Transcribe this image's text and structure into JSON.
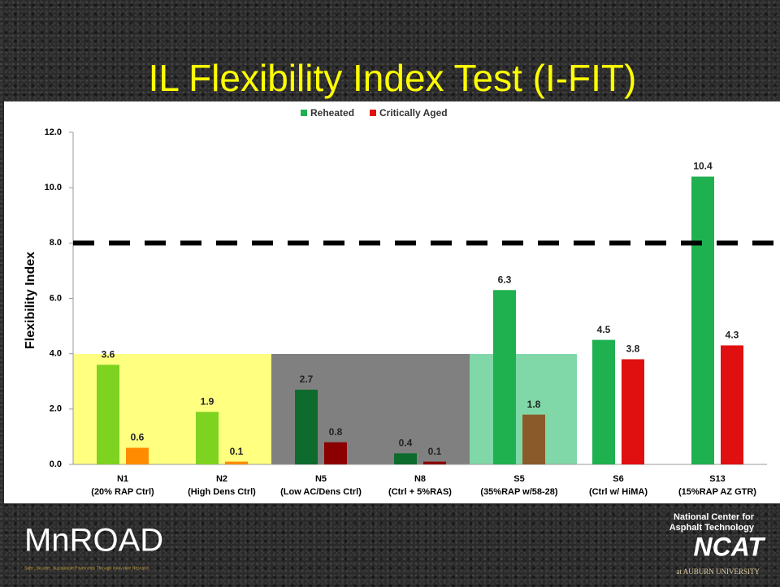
{
  "title": "IL Flexibility Index Test (I-FIT)",
  "logos": {
    "left": "MnROAD",
    "left_tagline": "Safer, Smarter, Sustainable Pavements Through Innovative Research",
    "right": [
      "National Center for",
      "Asphalt Technology",
      "NCAT",
      "at AUBURN UNIVERSITY"
    ]
  },
  "chart_data": {
    "type": "bar",
    "y_label": "Flexibility Index",
    "categories": [
      "N1",
      "N2",
      "N5",
      "N8",
      "S5",
      "S6",
      "S13"
    ],
    "category_descriptions": [
      "(20% RAP Ctrl)",
      "(High Dens Ctrl)",
      "(Low AC/Dens Ctrl)",
      "(Ctrl + 5%RAS)",
      "(35%RAP w/58-28)",
      "(Ctrl w/ HiMA)",
      "(15%RAP AZ GTR)"
    ],
    "series": [
      {
        "name": "Reheated",
        "color": "#1fb04f",
        "point_colors": [
          "#7ed321",
          "#7ed321",
          "#0d6b2e",
          "#0d6b2e",
          "#1fb04f",
          "#1fb04f",
          "#1fb04f"
        ],
        "values": [
          3.6,
          1.9,
          2.7,
          0.4,
          6.3,
          4.5,
          10.4
        ]
      },
      {
        "name": "Critically Aged",
        "color": "#e01010",
        "point_colors": [
          "#ff8c00",
          "#ff8c00",
          "#8b0000",
          "#8b0000",
          "#8b5a2b",
          "#e01010",
          "#e01010"
        ],
        "values": [
          0.6,
          0.1,
          0.8,
          0.1,
          1.8,
          3.8,
          4.3
        ]
      }
    ],
    "ylim": [
      0,
      12
    ],
    "yticks": [
      {
        "value": 0,
        "label": "0.0"
      },
      {
        "value": 2,
        "label": "2.0"
      },
      {
        "value": 4,
        "label": "4.0"
      },
      {
        "value": 6,
        "label": "6.0"
      },
      {
        "value": 8,
        "label": "8.0"
      },
      {
        "value": 10,
        "label": "10.0"
      },
      {
        "value": 12,
        "label": "12.0"
      }
    ],
    "reference_line": 8,
    "legend": "top"
  }
}
